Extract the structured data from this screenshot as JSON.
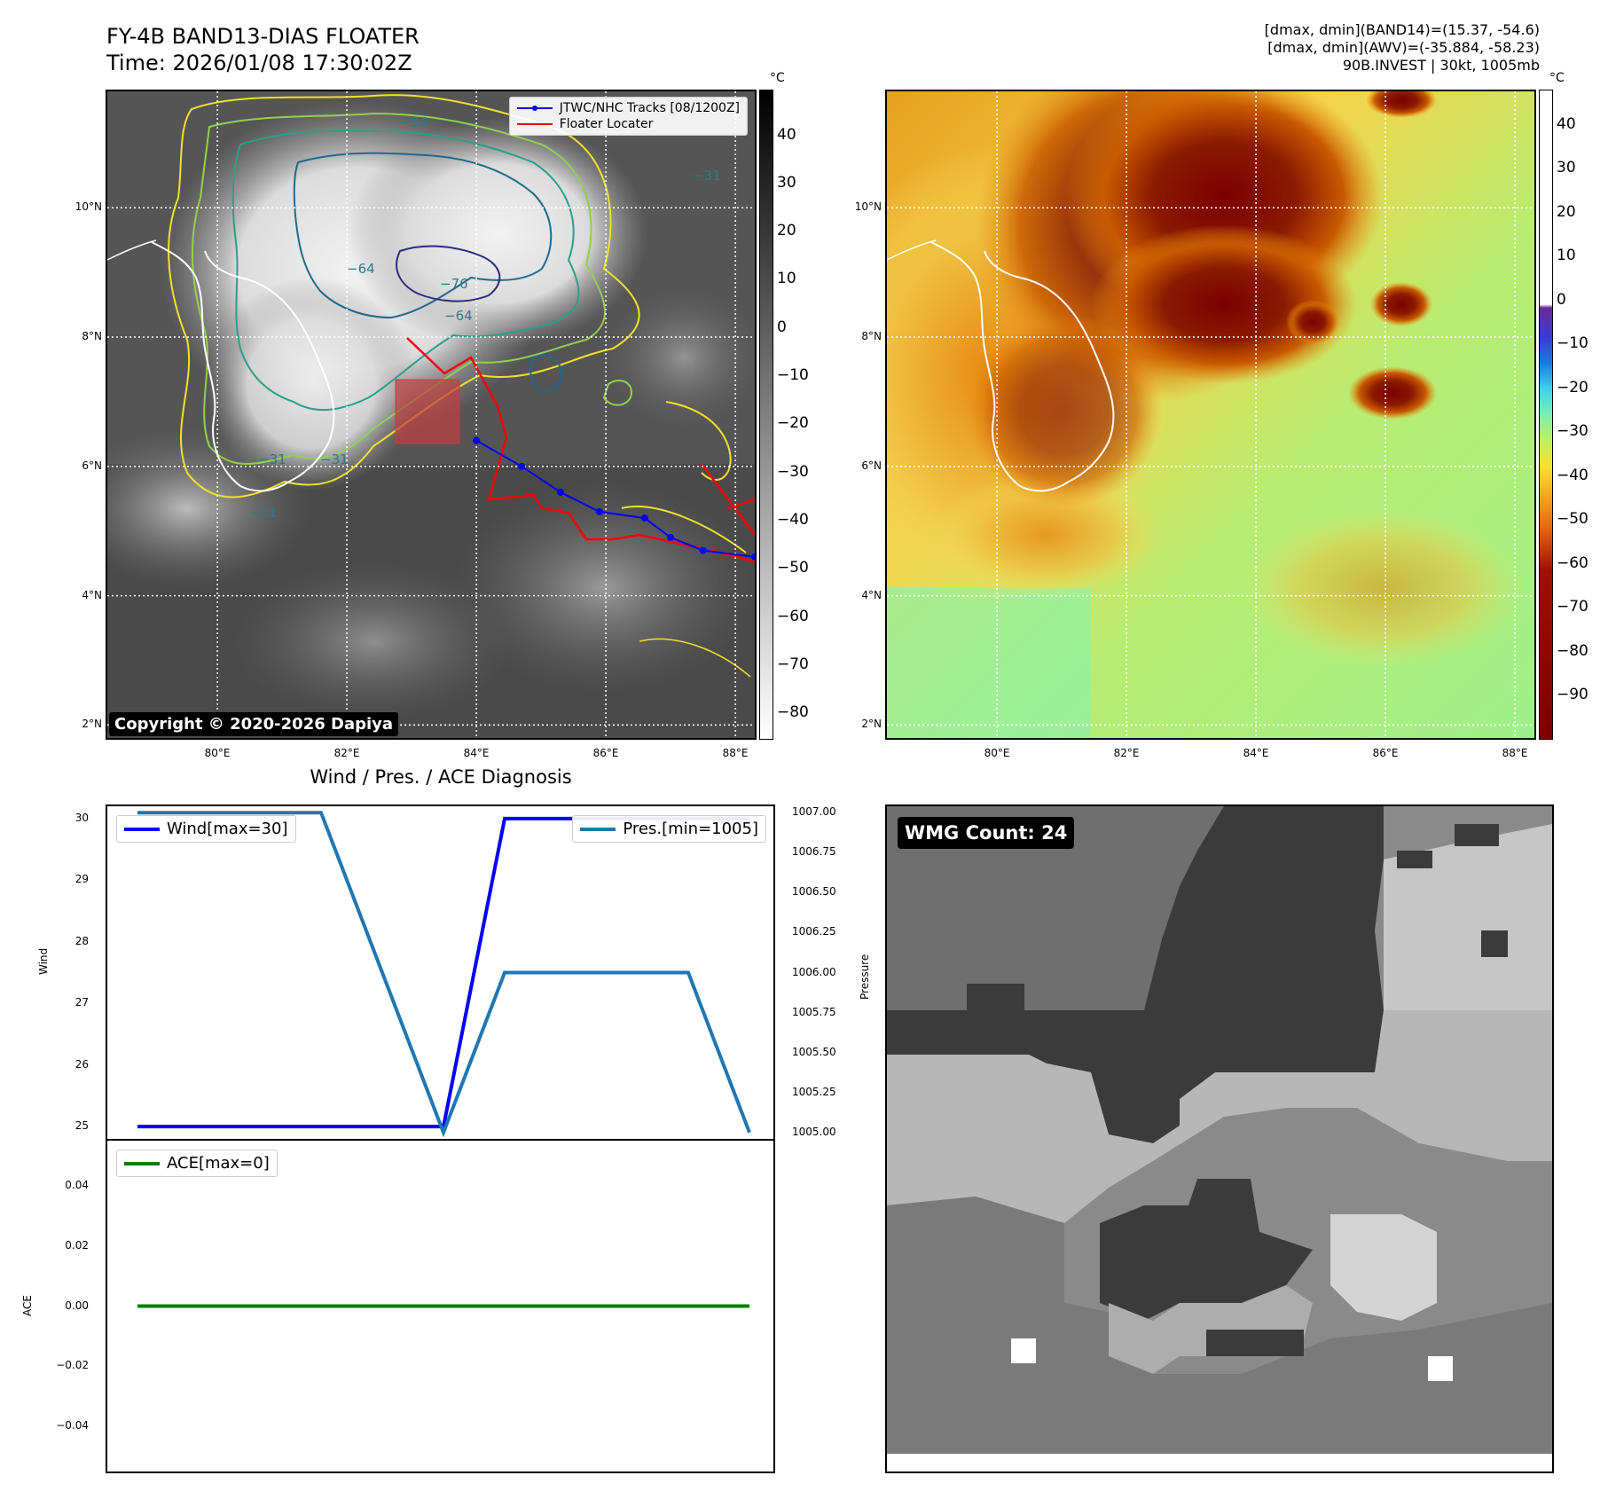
{
  "header": {
    "title_line1": "FY-4B BAND13-DIAS FLOATER",
    "title_line2": "Time: 2026/01/08 17:30:02Z",
    "meta_line1": "[dmax, dmin](BAND14)=(15.37, -54.6)",
    "meta_line2": "[dmax, dmin](AWV)=(-35.884, -58.23)",
    "meta_line3": "90B.INVEST | 30kt, 1005mb"
  },
  "map_axes": {
    "lon_labels": [
      "80°E",
      "82°E",
      "84°E",
      "86°E",
      "88°E"
    ],
    "lat_labels": [
      "10°N",
      "8°N",
      "6°N",
      "4°N",
      "2°N"
    ],
    "lon_range": [
      78.3,
      88.3
    ],
    "lat_range": [
      1.8,
      11.8
    ]
  },
  "ir_panel": {
    "legend": [
      {
        "label": "JTWC/NHC Tracks [08/1200Z]",
        "color": "#0000ff"
      },
      {
        "label": "Floater Locater",
        "color": "#ff0000"
      }
    ],
    "copyright": "Copyright © 2020-2026 Dapiya",
    "colorbar_unit": "°C",
    "colorbar_ticks": [
      "40",
      "30",
      "20",
      "10",
      "0",
      "−10",
      "−20",
      "−30",
      "−40",
      "−50",
      "−60",
      "−70",
      "−80"
    ],
    "contour_labels": [
      "−76",
      "−64",
      "−64",
      "−54",
      "−31",
      "−31",
      "−31",
      "−31"
    ],
    "track": [
      [
        84.0,
        6.4
      ],
      [
        84.7,
        6.0
      ],
      [
        85.3,
        5.6
      ],
      [
        85.9,
        5.3
      ],
      [
        86.6,
        5.2
      ],
      [
        87.0,
        4.9
      ],
      [
        87.5,
        4.7
      ],
      [
        88.3,
        4.6
      ]
    ]
  },
  "awv_panel": {
    "colorbar_unit": "°C",
    "colorbar_ticks": [
      "40",
      "30",
      "20",
      "10",
      "0",
      "−10",
      "−20",
      "−30",
      "−40",
      "−50",
      "−60",
      "−70",
      "−80",
      "−90"
    ]
  },
  "diag_title": "Wind / Pres. / ACE Diagnosis",
  "wmg": {
    "badge": "WMG Count: 24"
  },
  "colors": {
    "wind": "#0000ff",
    "pressure": "#1f77b4",
    "ace": "#008000",
    "track": "#0000ff",
    "floater": "#ff0000"
  },
  "chart_data": [
    {
      "type": "line",
      "series": [
        {
          "name": "Wind[max=30]",
          "axis": "left",
          "values": [
            25,
            25,
            25,
            25,
            25,
            25,
            30,
            30,
            30,
            30,
            30
          ]
        },
        {
          "name": "Pres.[min=1005]",
          "axis": "right",
          "values": [
            1007,
            1007,
            1007,
            1007,
            1006,
            1005,
            1006,
            1006,
            1006,
            1006,
            1005
          ]
        }
      ],
      "x": [
        0,
        1,
        2,
        3,
        4,
        5,
        6,
        7,
        8,
        9,
        10
      ],
      "ylabel": "Wind",
      "y2label": "Pressure",
      "ylim": [
        24.8,
        30.2
      ],
      "y2lim": [
        1004.96,
        1007.04
      ],
      "yticks": [
        "30",
        "29",
        "28",
        "27",
        "26",
        "25"
      ],
      "y2ticks": [
        "1007.00",
        "1006.75",
        "1006.50",
        "1006.25",
        "1006.00",
        "1005.75",
        "1005.50",
        "1005.25",
        "1005.00"
      ]
    },
    {
      "type": "line",
      "series": [
        {
          "name": "ACE[max=0]",
          "values": [
            0,
            0,
            0,
            0,
            0,
            0,
            0,
            0,
            0,
            0,
            0
          ]
        }
      ],
      "x": [
        0,
        1,
        2,
        3,
        4,
        5,
        6,
        7,
        8,
        9,
        10
      ],
      "ylabel": "ACE",
      "ylim": [
        -0.055,
        0.055
      ],
      "yticks": [
        "0.04",
        "0.02",
        "0.00",
        "−0.02",
        "−0.04"
      ]
    }
  ]
}
